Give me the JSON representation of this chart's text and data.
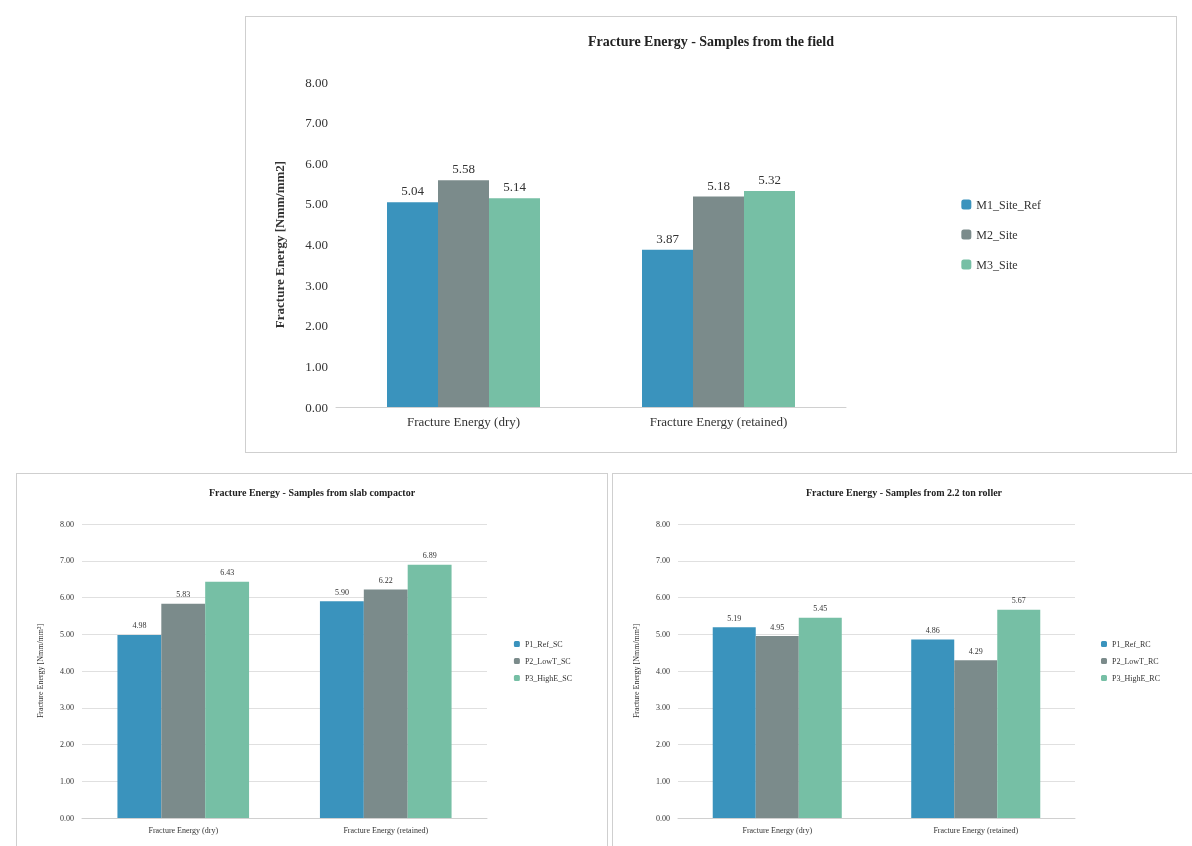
{
  "chart_data": [
    {
      "type": "bar",
      "title": "Fracture Energy - Samples from the field",
      "ylabel": "Fracture Energy [Nmm/mm2]",
      "categories": [
        "Fracture Energy (dry)",
        "Fracture Energy (retained)"
      ],
      "series": [
        {
          "name": "M1_Site_Ref",
          "color": "#3a93bd",
          "values": [
            5.04,
            3.87
          ],
          "value_labels": [
            "5.04",
            "3.87"
          ]
        },
        {
          "name": "M2_Site",
          "color": "#7b8b8b",
          "values": [
            5.58,
            5.18
          ],
          "value_labels": [
            "5.58",
            "5.18"
          ]
        },
        {
          "name": "M3_Site",
          "color": "#76bfa5",
          "values": [
            5.14,
            5.32
          ],
          "value_labels": [
            "5.14",
            "5.32"
          ]
        }
      ],
      "ylim": [
        0,
        8
      ],
      "yticks": [
        {
          "value": 0,
          "label": "0.00"
        },
        {
          "value": 1,
          "label": "1.00"
        },
        {
          "value": 2,
          "label": "2.00"
        },
        {
          "value": 3,
          "label": "3.00"
        },
        {
          "value": 4,
          "label": "4.00"
        },
        {
          "value": 5,
          "label": "5.00"
        },
        {
          "value": 6,
          "label": "6.00"
        },
        {
          "value": 7,
          "label": "7.00"
        },
        {
          "value": 8,
          "label": "8.00"
        }
      ],
      "grid": false,
      "legend": "right"
    },
    {
      "type": "bar",
      "title": "Fracture Energy - Samples from slab compactor",
      "ylabel": "Fracture Energy [Nmm/mm²]",
      "categories": [
        "Fracture Energy (dry)",
        "Fracture Energy (retained)"
      ],
      "series": [
        {
          "name": "P1_Ref_SC",
          "color": "#3a93bd",
          "values": [
            4.98,
            5.9
          ],
          "value_labels": [
            "4.98",
            "5.90"
          ]
        },
        {
          "name": "P2_LowT_SC",
          "color": "#7b8b8b",
          "values": [
            5.83,
            6.22
          ],
          "value_labels": [
            "5.83",
            "6.22"
          ]
        },
        {
          "name": "P3_HighE_SC",
          "color": "#76bfa5",
          "values": [
            6.43,
            6.89
          ],
          "value_labels": [
            "6.43",
            "6.89"
          ]
        }
      ],
      "ylim": [
        0,
        8
      ],
      "yticks": [
        {
          "value": 0,
          "label": "0.00"
        },
        {
          "value": 1,
          "label": "1.00"
        },
        {
          "value": 2,
          "label": "2.00"
        },
        {
          "value": 3,
          "label": "3.00"
        },
        {
          "value": 4,
          "label": "4.00"
        },
        {
          "value": 5,
          "label": "5.00"
        },
        {
          "value": 6,
          "label": "6.00"
        },
        {
          "value": 7,
          "label": "7.00"
        },
        {
          "value": 8,
          "label": "8.00"
        }
      ],
      "grid": "y",
      "legend": "right"
    },
    {
      "type": "bar",
      "title": "Fracture Energy - Samples from 2.2 ton roller",
      "ylabel": "Fracture Energy [Nmm/mm²]",
      "categories": [
        "Fracture Energy (dry)",
        "Fracture Energy (retained)"
      ],
      "series": [
        {
          "name": "P1_Ref_RC",
          "color": "#3a93bd",
          "values": [
            5.19,
            4.86
          ],
          "value_labels": [
            "5.19",
            "4.86"
          ]
        },
        {
          "name": "P2_LowT_RC",
          "color": "#7b8b8b",
          "values": [
            4.95,
            4.29
          ],
          "value_labels": [
            "4.95",
            "4.29"
          ]
        },
        {
          "name": "P3_HighE_RC",
          "color": "#76bfa5",
          "values": [
            5.45,
            5.67
          ],
          "value_labels": [
            "5.45",
            "5.67"
          ]
        }
      ],
      "ylim": [
        0,
        8
      ],
      "yticks": [
        {
          "value": 0,
          "label": "0.00"
        },
        {
          "value": 1,
          "label": "1.00"
        },
        {
          "value": 2,
          "label": "2.00"
        },
        {
          "value": 3,
          "label": "3.00"
        },
        {
          "value": 4,
          "label": "4.00"
        },
        {
          "value": 5,
          "label": "5.00"
        },
        {
          "value": 6,
          "label": "6.00"
        },
        {
          "value": 7,
          "label": "7.00"
        },
        {
          "value": 8,
          "label": "8.00"
        }
      ],
      "grid": "y",
      "legend": "right"
    }
  ]
}
